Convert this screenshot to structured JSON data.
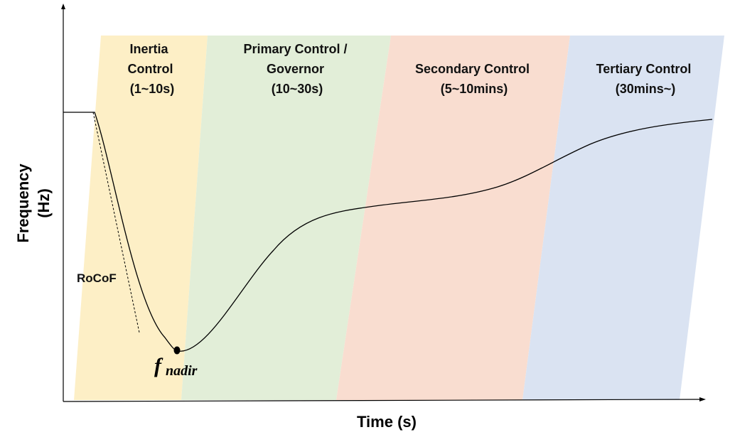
{
  "colors": {
    "inertia": "#fdefc6",
    "primary": "#e2eed8",
    "secondary": "#f9ddd0",
    "tertiary": "#dae3f2",
    "curve": "#000000",
    "axis": "#000000"
  },
  "bands": [
    {
      "id": "inertia",
      "lines": [
        "Inertia",
        "Control",
        "(1~10s)"
      ]
    },
    {
      "id": "primary",
      "lines": [
        "Primary Control /",
        "Governor",
        "(10~30s)"
      ]
    },
    {
      "id": "secondary",
      "lines": [
        "Secondary Control",
        "(5~10mins)"
      ]
    },
    {
      "id": "tertiary",
      "lines": [
        "Tertiary Control",
        "(30mins~)"
      ]
    }
  ],
  "axes": {
    "y_label_line1": "Frequency",
    "y_label_line2": "(Hz)",
    "x_label": "Time (s)"
  },
  "annotations": {
    "rocof": "RoCoF",
    "nadir_main": "f",
    "nadir_sub": "nadir"
  }
}
